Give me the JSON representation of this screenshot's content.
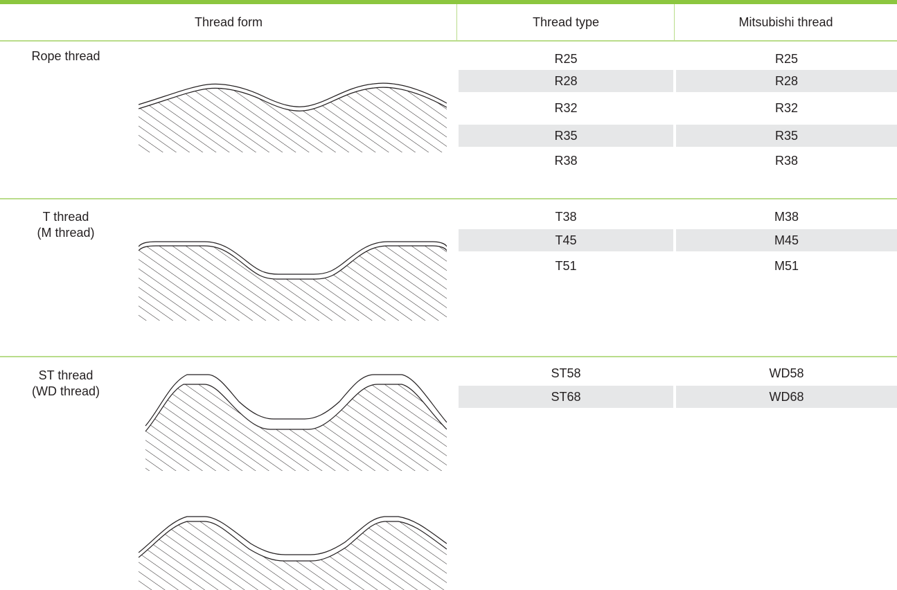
{
  "header": {
    "form": "Thread form",
    "type": "Thread type",
    "mitsubishi": "Mitsubishi thread"
  },
  "sections": [
    {
      "label_lines": [
        "Rope thread"
      ],
      "rows": [
        {
          "type": "R25",
          "mitsubishi": "R25"
        },
        {
          "type": "R28",
          "mitsubishi": "R28"
        },
        {
          "type": "R32",
          "mitsubishi": "R32"
        },
        {
          "type": "R35",
          "mitsubishi": "R35"
        },
        {
          "type": "R38",
          "mitsubishi": "R38"
        }
      ]
    },
    {
      "label_lines": [
        "T thread",
        "(M thread)"
      ],
      "rows": [
        {
          "type": "T38",
          "mitsubishi": "M38"
        },
        {
          "type": "T45",
          "mitsubishi": "M45"
        },
        {
          "type": "T51",
          "mitsubishi": "M51"
        }
      ]
    },
    {
      "label_lines": [
        "ST thread",
        "(WD thread)"
      ],
      "rows": [
        {
          "type": "ST58",
          "mitsubishi": "WD58"
        },
        {
          "type": "ST68",
          "mitsubishi": "WD68"
        }
      ]
    }
  ],
  "colors": {
    "accent_bar": "#8cc63f",
    "divider": "#b9dc8a",
    "row_shade": "#e6e7e8",
    "text": "#231f20"
  }
}
